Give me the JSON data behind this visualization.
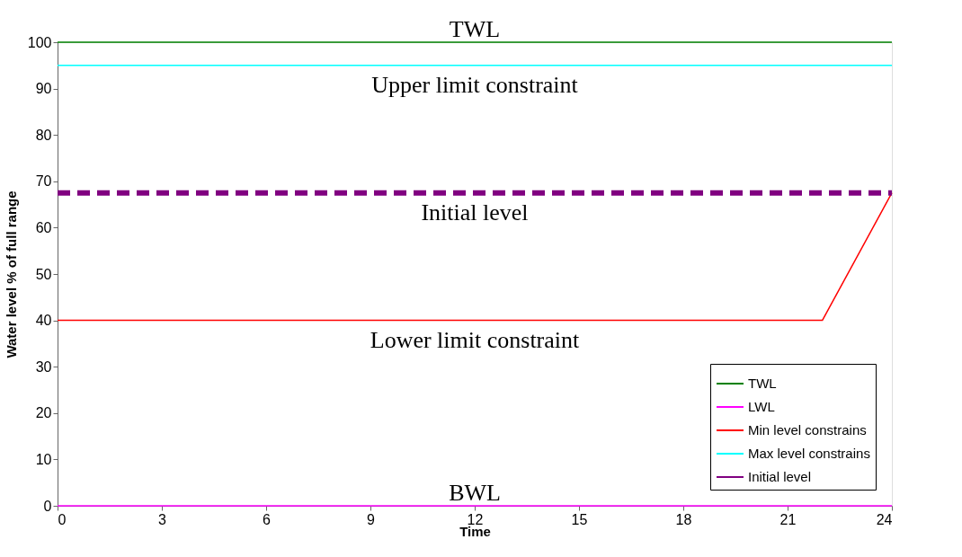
{
  "chart_data": {
    "type": "line",
    "xlabel": "Time",
    "ylabel": "Water level % of full range",
    "xlim": [
      0,
      24
    ],
    "xticks": [
      0,
      3,
      6,
      9,
      12,
      15,
      18,
      21,
      24
    ],
    "ylim": [
      0,
      100
    ],
    "yticks": [
      0,
      10,
      20,
      30,
      40,
      50,
      60,
      70,
      80,
      90,
      100
    ],
    "grid": false,
    "legend": "bottom right",
    "marker": "none",
    "series": [
      {
        "name": "TWL",
        "color": "#008000",
        "x": [
          0,
          24
        ],
        "values": [
          100,
          100
        ],
        "line_style": "solid"
      },
      {
        "name": "LWL",
        "color": "#ff00ff",
        "x": [
          0,
          24
        ],
        "values": [
          0,
          0
        ],
        "line_style": "solid"
      },
      {
        "name": "Min level constrains",
        "color": "#ff0000",
        "x": [
          0,
          22,
          24
        ],
        "values": [
          40,
          40,
          67.5
        ],
        "line_style": "solid"
      },
      {
        "name": "Max level constrains",
        "color": "#00ffff",
        "x": [
          0,
          24
        ],
        "values": [
          95,
          95
        ],
        "line_style": "solid"
      },
      {
        "name": "Initial level",
        "color": "#800080",
        "x": [
          0,
          24
        ],
        "values": [
          67.5,
          67.5
        ],
        "line_style": "dashed"
      }
    ],
    "annotations": [
      {
        "text": "TWL",
        "y": 100
      },
      {
        "text": "Upper limit constraint",
        "y": 95
      },
      {
        "text": "Initial level",
        "y": 67.5
      },
      {
        "text": "Lower limit constraint",
        "y": 40
      },
      {
        "text": "BWL",
        "y": 0
      }
    ]
  }
}
